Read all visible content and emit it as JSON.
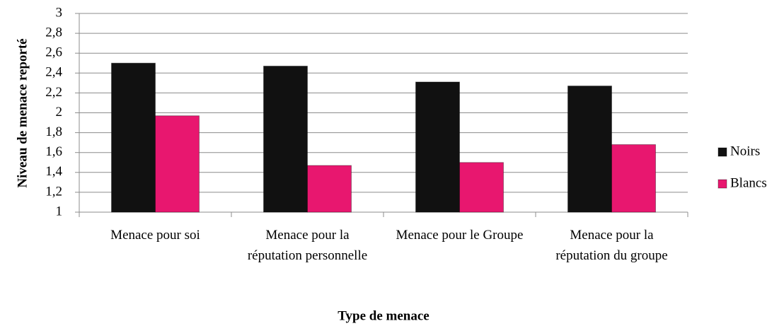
{
  "chart_data": {
    "type": "bar",
    "categories": [
      "Menace pour soi",
      "Menace pour la réputation personnelle",
      "Menace pour le Groupe",
      "Menace pour la réputation du groupe"
    ],
    "series": [
      {
        "name": "Noirs",
        "color": "#111111",
        "values": [
          2.5,
          2.47,
          2.31,
          2.27
        ]
      },
      {
        "name": "Blancs",
        "color": "#e8176f",
        "values": [
          1.97,
          1.47,
          1.5,
          1.68
        ]
      }
    ],
    "y_label": "Niveau de menace reporté",
    "x_label": "Type de menace",
    "ylim": [
      1,
      3
    ],
    "yticks": [
      1,
      {
        "value": 1.2,
        "label": "1,2"
      },
      {
        "value": 1.4,
        "label": "1,4"
      },
      {
        "value": 1.6,
        "label": "1,6"
      },
      {
        "value": 1.8,
        "label": "1,8"
      },
      2,
      {
        "value": 2.2,
        "label": "2,2"
      },
      {
        "value": 2.4,
        "label": "2,4"
      },
      {
        "value": 2.6,
        "label": "2,6"
      },
      {
        "value": 2.8,
        "label": "2,8"
      },
      3
    ],
    "grid": true,
    "legend": "right"
  }
}
